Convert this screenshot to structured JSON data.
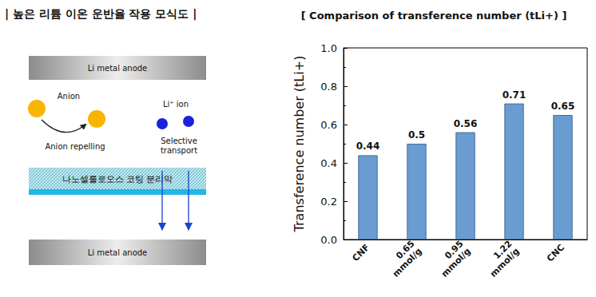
{
  "diagram": {
    "title": "| 높은 리튬 이온 운반율 작용 모식도 |",
    "top_electrode": "Li metal anode",
    "bottom_electrode": "Li metal anode",
    "anion_label": "Anion",
    "anion_action": "Anion repelling",
    "ion_label": "Li⁺ ion",
    "ion_action": "Selective\ntransport",
    "separator": "나노셀룰로오스 코팅 분리막"
  },
  "chart_data": {
    "type": "bar",
    "title": "[ Comparison of transference number (tLi+) ]",
    "y_label": "Transference number (tLi+)",
    "categories": [
      "CNF",
      "0.65\nmmol/g",
      "0.95\nmmol/g",
      "1.22\nmmol/g",
      "CNC"
    ],
    "values": [
      0.44,
      0.5,
      0.56,
      0.71,
      0.65
    ],
    "color": "#6a9bd1",
    "ylim": [
      0,
      1.0
    ],
    "yticks": [
      {
        "value": 0,
        "label": "0.0"
      },
      0.2,
      0.4,
      0.6,
      0.8,
      {
        "value": 1.0,
        "label": "1.0"
      }
    ],
    "grid": false,
    "data_labels": true
  }
}
